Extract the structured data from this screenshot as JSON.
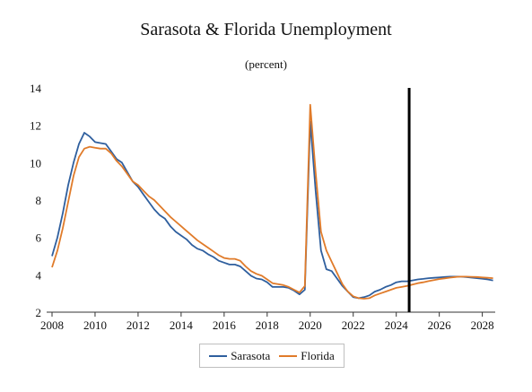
{
  "chart_data": {
    "type": "line",
    "title": "Sarasota & Florida Unemployment",
    "subtitle": "(percent)",
    "ylim": [
      2,
      14
    ],
    "yticks": [
      "2",
      "4",
      "6",
      "8",
      "10",
      "12",
      "14"
    ],
    "xlim": [
      2007.75,
      2028.6
    ],
    "xticks": [
      "2008",
      "2010",
      "2012",
      "2014",
      "2016",
      "2018",
      "2020",
      "2022",
      "2024",
      "2026",
      "2028"
    ],
    "grid": false,
    "legend_position": "bottom",
    "vertical_marker_x": 2024.6,
    "series": [
      {
        "name": "Sarasota",
        "color": "#2f5f9e",
        "points": [
          [
            2008.0,
            5.0
          ],
          [
            2008.25,
            6.0
          ],
          [
            2008.5,
            7.3
          ],
          [
            2008.75,
            8.8
          ],
          [
            2009.0,
            10.0
          ],
          [
            2009.25,
            11.0
          ],
          [
            2009.5,
            11.6
          ],
          [
            2009.75,
            11.4
          ],
          [
            2010.0,
            11.1
          ],
          [
            2010.25,
            11.05
          ],
          [
            2010.5,
            11.0
          ],
          [
            2010.75,
            10.6
          ],
          [
            2011.0,
            10.2
          ],
          [
            2011.25,
            10.0
          ],
          [
            2011.5,
            9.5
          ],
          [
            2011.75,
            9.0
          ],
          [
            2012.0,
            8.7
          ],
          [
            2012.25,
            8.3
          ],
          [
            2012.5,
            7.9
          ],
          [
            2012.75,
            7.5
          ],
          [
            2013.0,
            7.2
          ],
          [
            2013.25,
            7.0
          ],
          [
            2013.5,
            6.6
          ],
          [
            2013.75,
            6.3
          ],
          [
            2014.0,
            6.1
          ],
          [
            2014.25,
            5.9
          ],
          [
            2014.5,
            5.6
          ],
          [
            2014.75,
            5.4
          ],
          [
            2015.0,
            5.3
          ],
          [
            2015.25,
            5.1
          ],
          [
            2015.5,
            4.95
          ],
          [
            2015.75,
            4.75
          ],
          [
            2016.0,
            4.65
          ],
          [
            2016.25,
            4.55
          ],
          [
            2016.5,
            4.55
          ],
          [
            2016.75,
            4.45
          ],
          [
            2017.0,
            4.2
          ],
          [
            2017.25,
            3.95
          ],
          [
            2017.5,
            3.8
          ],
          [
            2017.75,
            3.75
          ],
          [
            2018.0,
            3.6
          ],
          [
            2018.25,
            3.35
          ],
          [
            2018.5,
            3.35
          ],
          [
            2018.75,
            3.35
          ],
          [
            2019.0,
            3.3
          ],
          [
            2019.25,
            3.15
          ],
          [
            2019.5,
            2.95
          ],
          [
            2019.75,
            3.2
          ],
          [
            2020.0,
            12.2
          ],
          [
            2020.25,
            8.5
          ],
          [
            2020.5,
            5.3
          ],
          [
            2020.75,
            4.3
          ],
          [
            2021.0,
            4.2
          ],
          [
            2021.25,
            3.8
          ],
          [
            2021.5,
            3.4
          ],
          [
            2021.75,
            3.1
          ],
          [
            2022.0,
            2.8
          ],
          [
            2022.25,
            2.75
          ],
          [
            2022.5,
            2.8
          ],
          [
            2022.75,
            2.9
          ],
          [
            2023.0,
            3.1
          ],
          [
            2023.25,
            3.2
          ],
          [
            2023.5,
            3.35
          ],
          [
            2023.75,
            3.45
          ],
          [
            2024.0,
            3.6
          ],
          [
            2024.25,
            3.65
          ],
          [
            2024.5,
            3.65
          ],
          [
            2024.75,
            3.7
          ],
          [
            2025.0,
            3.75
          ],
          [
            2025.25,
            3.78
          ],
          [
            2025.5,
            3.82
          ],
          [
            2025.75,
            3.84
          ],
          [
            2026.0,
            3.86
          ],
          [
            2026.25,
            3.88
          ],
          [
            2026.5,
            3.9
          ],
          [
            2026.75,
            3.9
          ],
          [
            2027.0,
            3.9
          ],
          [
            2027.25,
            3.88
          ],
          [
            2027.5,
            3.85
          ],
          [
            2027.75,
            3.82
          ],
          [
            2028.0,
            3.79
          ],
          [
            2028.25,
            3.75
          ],
          [
            2028.5,
            3.7
          ]
        ]
      },
      {
        "name": "Florida",
        "color": "#e07b2a",
        "points": [
          [
            2008.0,
            4.4
          ],
          [
            2008.25,
            5.3
          ],
          [
            2008.5,
            6.5
          ],
          [
            2008.75,
            7.9
          ],
          [
            2009.0,
            9.3
          ],
          [
            2009.25,
            10.3
          ],
          [
            2009.5,
            10.75
          ],
          [
            2009.75,
            10.85
          ],
          [
            2010.0,
            10.8
          ],
          [
            2010.25,
            10.75
          ],
          [
            2010.5,
            10.75
          ],
          [
            2010.75,
            10.5
          ],
          [
            2011.0,
            10.1
          ],
          [
            2011.25,
            9.8
          ],
          [
            2011.5,
            9.4
          ],
          [
            2011.75,
            9.0
          ],
          [
            2012.0,
            8.8
          ],
          [
            2012.25,
            8.5
          ],
          [
            2012.5,
            8.2
          ],
          [
            2012.75,
            8.0
          ],
          [
            2013.0,
            7.7
          ],
          [
            2013.25,
            7.4
          ],
          [
            2013.5,
            7.1
          ],
          [
            2013.75,
            6.85
          ],
          [
            2014.0,
            6.6
          ],
          [
            2014.25,
            6.35
          ],
          [
            2014.5,
            6.1
          ],
          [
            2014.75,
            5.85
          ],
          [
            2015.0,
            5.65
          ],
          [
            2015.25,
            5.45
          ],
          [
            2015.5,
            5.25
          ],
          [
            2015.75,
            5.05
          ],
          [
            2016.0,
            4.9
          ],
          [
            2016.25,
            4.85
          ],
          [
            2016.5,
            4.85
          ],
          [
            2016.75,
            4.75
          ],
          [
            2017.0,
            4.45
          ],
          [
            2017.25,
            4.2
          ],
          [
            2017.5,
            4.05
          ],
          [
            2017.75,
            3.95
          ],
          [
            2018.0,
            3.75
          ],
          [
            2018.25,
            3.55
          ],
          [
            2018.5,
            3.5
          ],
          [
            2018.75,
            3.45
          ],
          [
            2019.0,
            3.35
          ],
          [
            2019.25,
            3.2
          ],
          [
            2019.5,
            3.05
          ],
          [
            2019.75,
            3.4
          ],
          [
            2020.0,
            13.1
          ],
          [
            2020.25,
            9.5
          ],
          [
            2020.5,
            6.3
          ],
          [
            2020.75,
            5.3
          ],
          [
            2021.0,
            4.7
          ],
          [
            2021.25,
            4.1
          ],
          [
            2021.5,
            3.5
          ],
          [
            2021.75,
            3.1
          ],
          [
            2022.0,
            2.85
          ],
          [
            2022.25,
            2.75
          ],
          [
            2022.5,
            2.72
          ],
          [
            2022.75,
            2.75
          ],
          [
            2023.0,
            2.9
          ],
          [
            2023.25,
            3.0
          ],
          [
            2023.5,
            3.1
          ],
          [
            2023.75,
            3.2
          ],
          [
            2024.0,
            3.3
          ],
          [
            2024.25,
            3.35
          ],
          [
            2024.5,
            3.4
          ],
          [
            2024.75,
            3.48
          ],
          [
            2025.0,
            3.55
          ],
          [
            2025.25,
            3.6
          ],
          [
            2025.5,
            3.66
          ],
          [
            2025.75,
            3.72
          ],
          [
            2026.0,
            3.77
          ],
          [
            2026.25,
            3.81
          ],
          [
            2026.5,
            3.85
          ],
          [
            2026.75,
            3.88
          ],
          [
            2027.0,
            3.9
          ],
          [
            2027.25,
            3.9
          ],
          [
            2027.5,
            3.89
          ],
          [
            2027.75,
            3.88
          ],
          [
            2028.0,
            3.86
          ],
          [
            2028.25,
            3.84
          ],
          [
            2028.5,
            3.82
          ]
        ]
      }
    ]
  }
}
